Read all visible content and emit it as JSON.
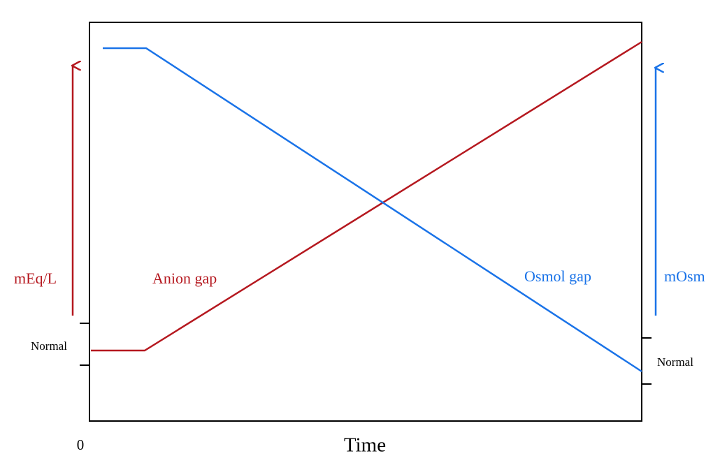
{
  "axes": {
    "left": {
      "label": "mEq/L",
      "normal_label": "Normal"
    },
    "right": {
      "label": "mOsm",
      "normal_label": "Normal"
    },
    "x": {
      "origin_label": 0,
      "label": "Time"
    }
  },
  "curves": [
    {
      "name": "Anion gap"
    },
    {
      "name": "Osmol gap"
    }
  ]
}
